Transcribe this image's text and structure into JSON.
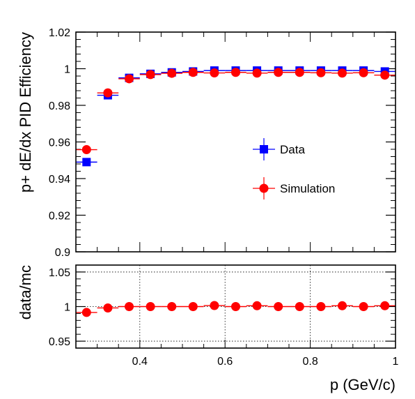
{
  "chart_data": [
    {
      "type": "scatter",
      "panel": "efficiency",
      "ylabel": "p+ dE/dx PID Efficiency",
      "xlim": [
        0.25,
        1.0
      ],
      "ylim": [
        0.9,
        1.02
      ],
      "yticks": [
        0.9,
        0.92,
        0.94,
        0.96,
        0.98,
        1.0,
        1.02
      ],
      "ytick_labels": [
        "0.9",
        "0.92",
        "0.94",
        "0.96",
        "0.98",
        "1",
        "1.02"
      ],
      "grid": false,
      "legend_position": "middle-right",
      "x_bin_half_width": 0.025,
      "x": [
        0.275,
        0.325,
        0.375,
        0.425,
        0.475,
        0.525,
        0.575,
        0.625,
        0.675,
        0.725,
        0.775,
        0.825,
        0.875,
        0.925,
        0.975
      ],
      "series": [
        {
          "name": "Data",
          "marker": "square",
          "color": "#0000ff",
          "values": [
            0.949,
            0.9855,
            0.995,
            0.9972,
            0.998,
            0.9985,
            0.999,
            0.999,
            0.999,
            0.999,
            0.999,
            0.999,
            0.999,
            0.999,
            0.9985
          ]
        },
        {
          "name": "Simulation",
          "marker": "circle",
          "color": "#ff0000",
          "values": [
            0.9558,
            0.9868,
            0.9945,
            0.9968,
            0.9975,
            0.998,
            0.9977,
            0.998,
            0.9976,
            0.998,
            0.998,
            0.9978,
            0.9976,
            0.9978,
            0.9965
          ]
        }
      ]
    },
    {
      "type": "scatter",
      "panel": "ratio",
      "xlabel": "p (GeV/c)",
      "ylabel": "data/mc",
      "xlim": [
        0.25,
        1.0
      ],
      "ylim": [
        0.94,
        1.06
      ],
      "yticks": [
        0.95,
        1.0,
        1.05
      ],
      "ytick_labels": [
        "0.95",
        "1",
        "1.05"
      ],
      "xticks": [
        0.4,
        0.6,
        0.8,
        1.0
      ],
      "xtick_labels": [
        "0.4",
        "0.6",
        "0.8",
        "1"
      ],
      "grid": true,
      "x_bin_half_width": 0.025,
      "x": [
        0.275,
        0.325,
        0.375,
        0.425,
        0.475,
        0.525,
        0.575,
        0.625,
        0.675,
        0.725,
        0.775,
        0.825,
        0.875,
        0.925,
        0.975
      ],
      "series": [
        {
          "marker": "circle",
          "color": "#ff0000",
          "values": [
            0.9915,
            0.998,
            1.0,
            1.0,
            1.0,
            1.0,
            1.0015,
            1.0,
            1.0012,
            1.0,
            1.0,
            1.0,
            1.0012,
            1.0,
            1.0012
          ]
        }
      ]
    }
  ]
}
